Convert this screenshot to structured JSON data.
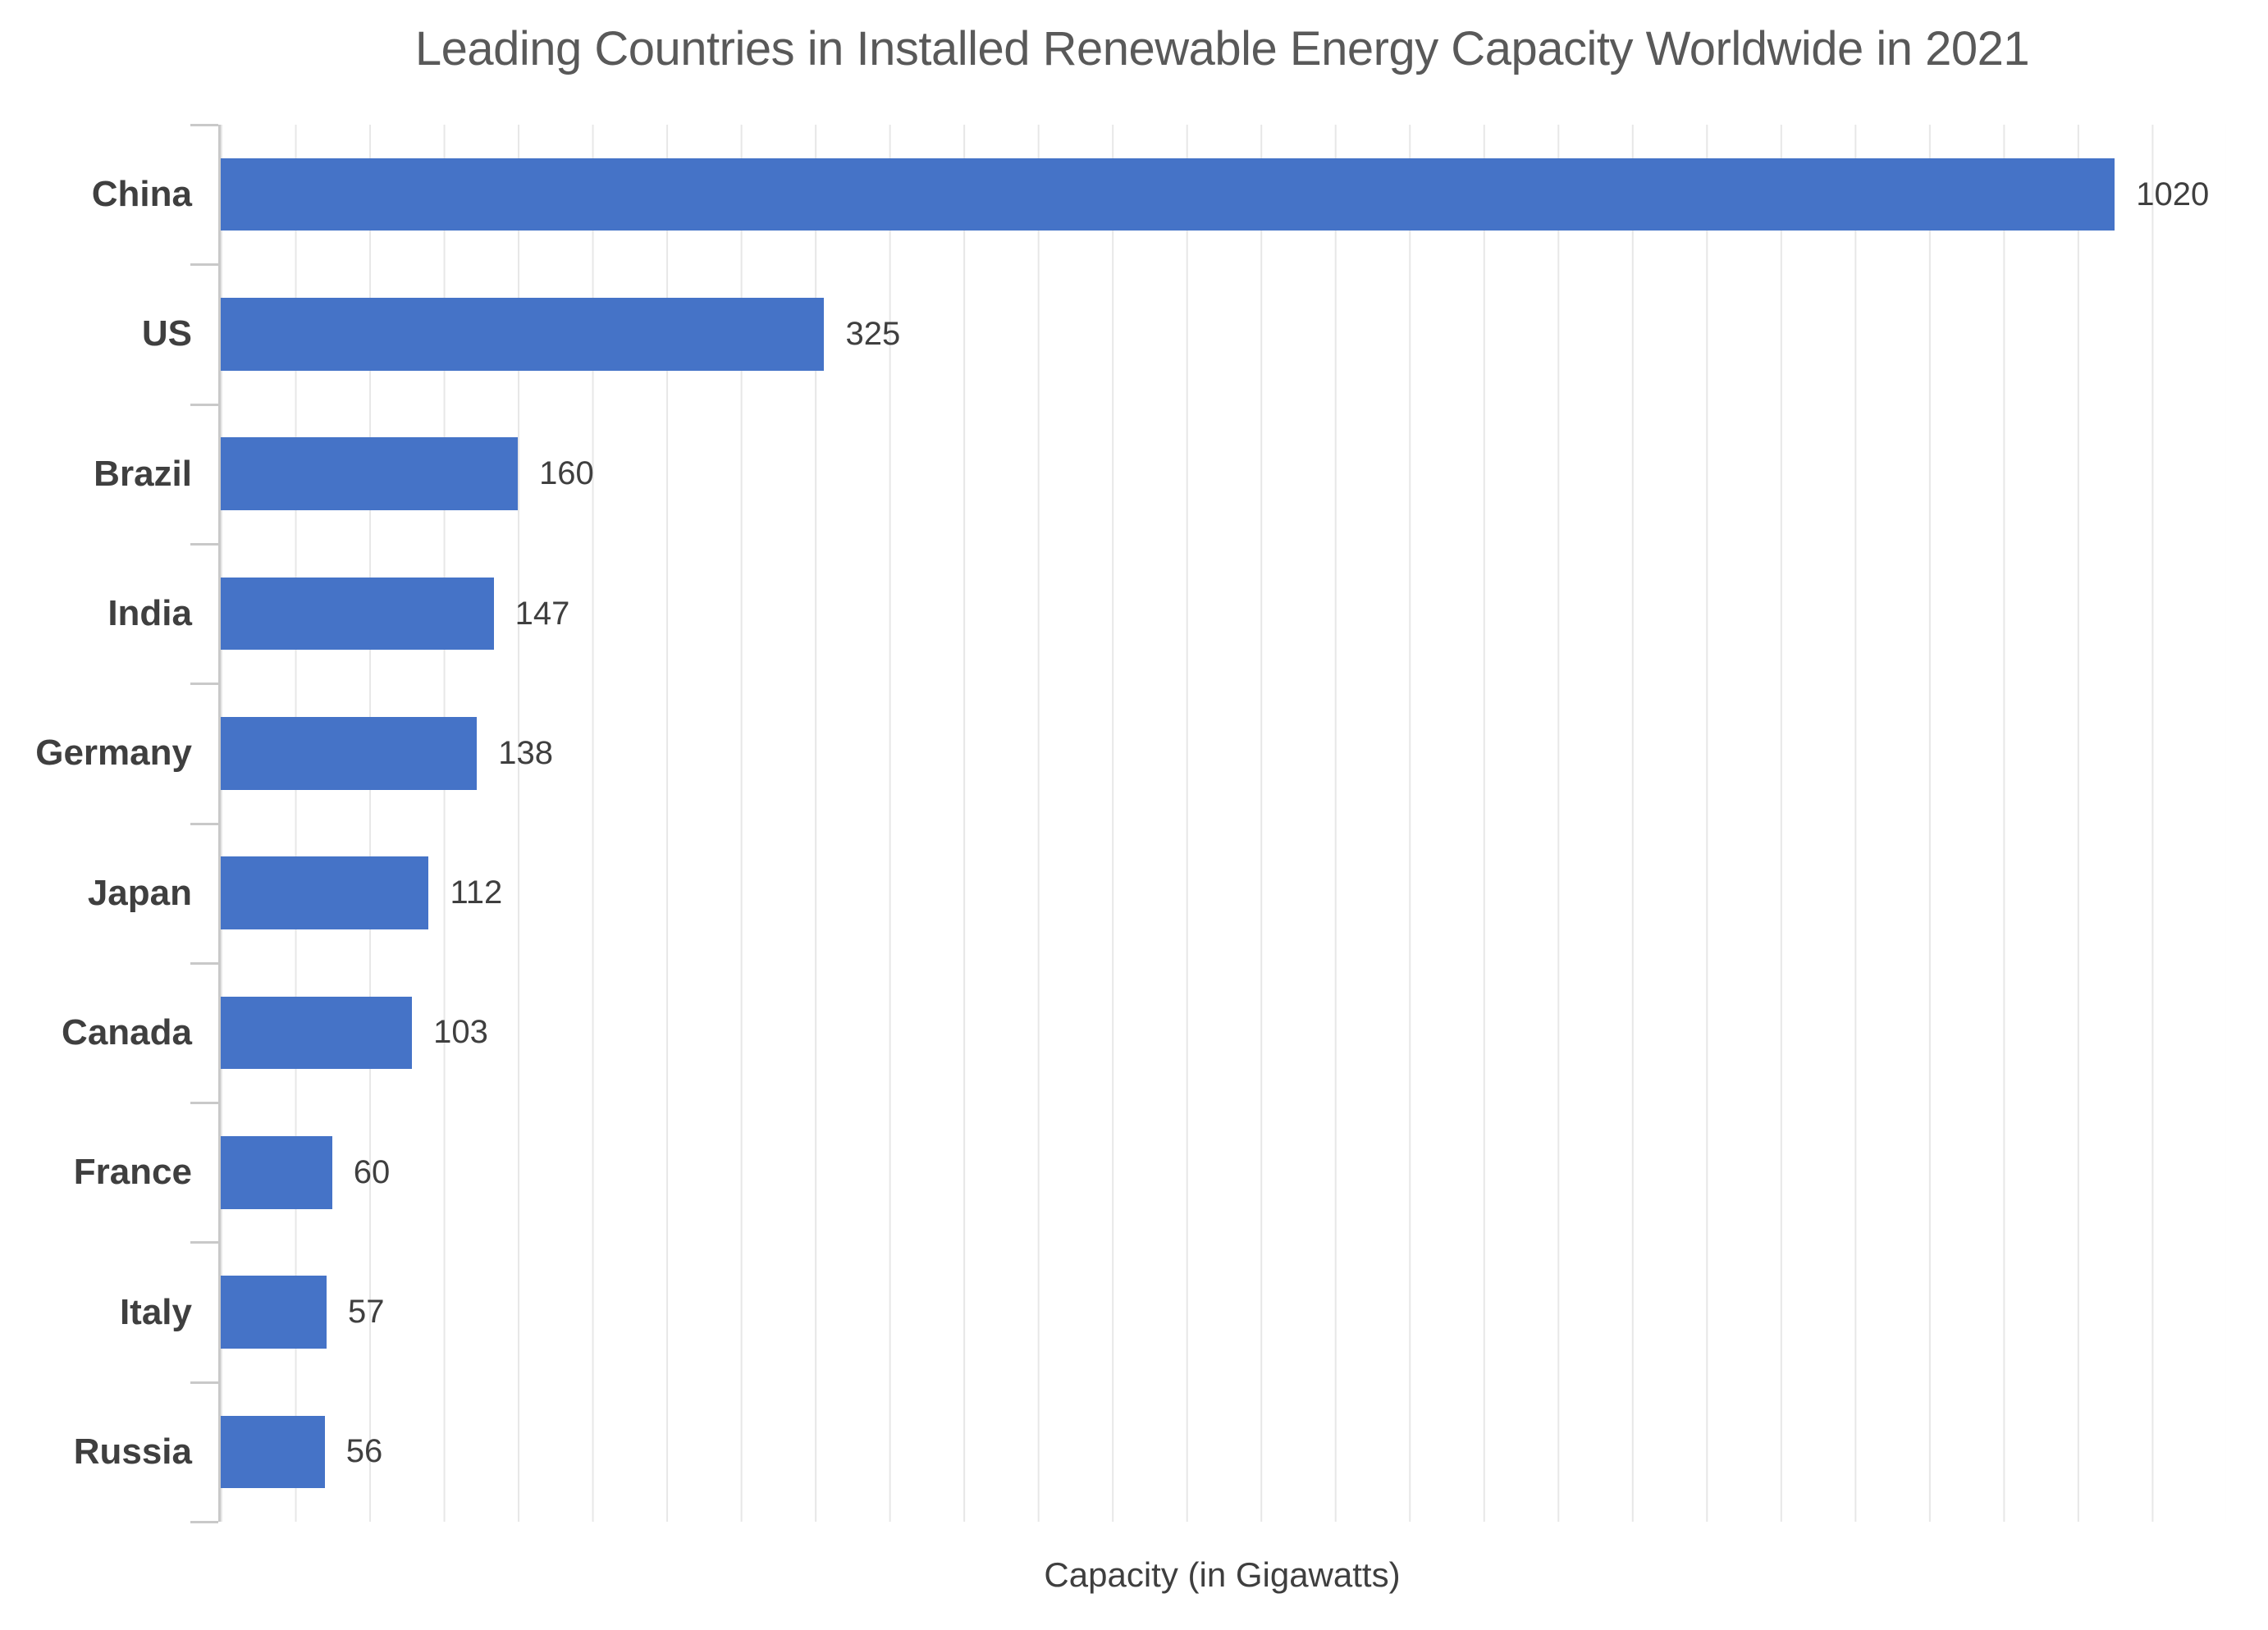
{
  "chart_data": {
    "type": "bar",
    "orientation": "horizontal",
    "title": "Leading Countries in Installed Renewable Energy Capacity Worldwide in 2021",
    "categories": [
      "China",
      "US",
      "Brazil",
      "India",
      "Germany",
      "Japan",
      "Canada",
      "France",
      "Italy",
      "Russia"
    ],
    "values": [
      1020,
      325,
      160,
      147,
      138,
      112,
      103,
      60,
      57,
      56
    ],
    "xlabel": "Capacity (in Gigawatts)",
    "ylabel": "",
    "xlim": [
      0,
      1080
    ],
    "gridline_interval": 40,
    "grid": true,
    "legend": false,
    "value_labels_shown": true,
    "colors": {
      "bar": "#4573C7",
      "title": "#595959",
      "category_label": "#3F3F3F",
      "value_label": "#3F3F3F",
      "axis": "#C9C9C9",
      "gridline": "#E7E7E7",
      "background": "#FFFFFF"
    }
  }
}
